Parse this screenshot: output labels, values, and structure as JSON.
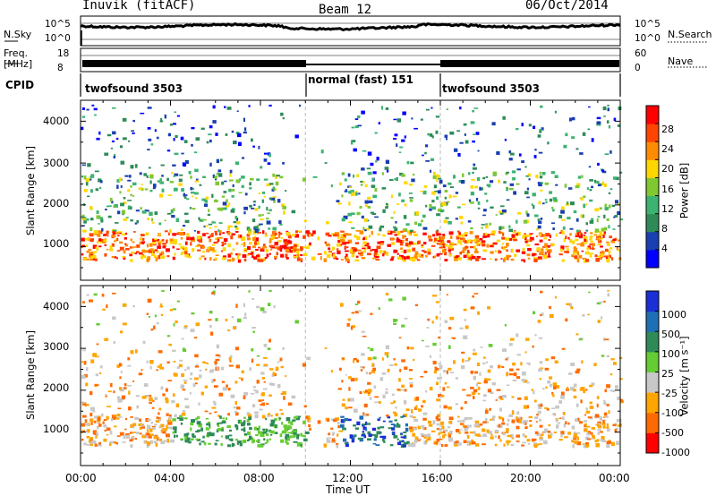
{
  "header": {
    "station": "Inuvik (fitACF)",
    "beam": "Beam 12",
    "date": "06/Oct/2014"
  },
  "noise_panel": {
    "left_label": "N.Sky",
    "right_label": "N.Search",
    "left_ticks": [
      "10^5",
      "10^0"
    ],
    "right_ticks": [
      "10^5",
      "10^0"
    ]
  },
  "freq_panel": {
    "left_label_line1": "Freq.",
    "left_label_line2": "[MHz]",
    "right_label": "Nave",
    "left_ticks": [
      "18",
      "8"
    ],
    "right_ticks": [
      "60",
      "0"
    ]
  },
  "cpid_panel": {
    "label": "CPID",
    "segments": [
      {
        "name": "twofsound 3503"
      },
      {
        "name": "normal (fast) 151"
      },
      {
        "name": "twofsound 3503"
      }
    ]
  },
  "chart_data": [
    {
      "type": "heatmap",
      "name": "power",
      "ylabel": "Slant Range [km]",
      "yticks": [
        "4000",
        "3000",
        "2000",
        "1000"
      ],
      "ylim": [
        200,
        4500
      ],
      "colorbar": {
        "label": "Power [dB]",
        "ticks": [
          "28",
          "24",
          "20",
          "16",
          "12",
          "8",
          "4"
        ],
        "range": [
          0,
          30
        ],
        "colors": [
          "#0000ff",
          "#1a3fb0",
          "#2e8b57",
          "#3cb371",
          "#7fc832",
          "#ffd700",
          "#ff8c00",
          "#ff4500",
          "#ff0000"
        ]
      }
    },
    {
      "type": "heatmap",
      "name": "velocity",
      "ylabel": "Slant Range [km]",
      "yticks": [
        "4000",
        "3000",
        "2000",
        "1000"
      ],
      "ylim": [
        200,
        4500
      ],
      "colorbar": {
        "label": "Velocity [m s⁻¹]",
        "ticks": [
          "1000",
          "500",
          "100",
          "25",
          "-25",
          "-100",
          "-500",
          "-1000"
        ],
        "colors": [
          "#1a2fd6",
          "#1e6fb5",
          "#2e8b57",
          "#66cc33",
          "#c8c8c8",
          "#ffa500",
          "#ff6a00",
          "#ff0000"
        ]
      }
    }
  ],
  "time_axis": {
    "label": "Time UT",
    "ticks": [
      "00:00",
      "04:00",
      "08:00",
      "12:00",
      "16:00",
      "20:00",
      "00:00"
    ]
  }
}
